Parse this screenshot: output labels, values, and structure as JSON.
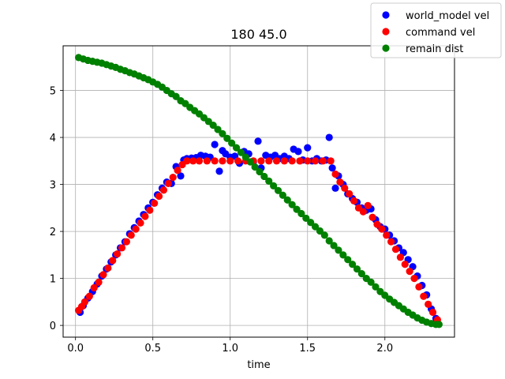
{
  "chart_data": {
    "type": "scatter",
    "title": "180  45.0",
    "xlabel": "time",
    "ylabel": "",
    "xlim": [
      -0.08,
      2.45
    ],
    "ylim": [
      -0.25,
      5.95
    ],
    "xticks": [
      0.0,
      0.5,
      1.0,
      1.5,
      2.0
    ],
    "xtick_labels": [
      "0.0",
      "0.5",
      "1.0",
      "1.5",
      "2.0"
    ],
    "yticks": [
      0,
      1,
      2,
      3,
      4,
      5
    ],
    "ytick_labels": [
      "0",
      "1",
      "2",
      "3",
      "4",
      "5"
    ],
    "grid": true,
    "legend_position": "top-right",
    "series": [
      {
        "name": "world_model vel",
        "color": "#0000ff",
        "x": [
          0.03,
          0.05,
          0.08,
          0.11,
          0.14,
          0.17,
          0.2,
          0.23,
          0.26,
          0.29,
          0.32,
          0.35,
          0.38,
          0.41,
          0.44,
          0.47,
          0.5,
          0.53,
          0.56,
          0.59,
          0.62,
          0.65,
          0.68,
          0.7,
          0.72,
          0.75,
          0.78,
          0.81,
          0.84,
          0.87,
          0.9,
          0.93,
          0.95,
          0.97,
          1.0,
          1.03,
          1.06,
          1.09,
          1.12,
          1.15,
          1.18,
          1.2,
          1.23,
          1.26,
          1.29,
          1.32,
          1.35,
          1.38,
          1.41,
          1.44,
          1.47,
          1.5,
          1.53,
          1.56,
          1.59,
          1.62,
          1.64,
          1.66,
          1.68,
          1.7,
          1.73,
          1.76,
          1.79,
          1.82,
          1.85,
          1.88,
          1.91,
          1.94,
          1.97,
          2.0,
          2.03,
          2.06,
          2.09,
          2.12,
          2.15,
          2.18,
          2.21,
          2.24,
          2.27,
          2.3,
          2.33
        ],
        "y": [
          0.28,
          0.42,
          0.58,
          0.72,
          0.88,
          1.05,
          1.2,
          1.35,
          1.5,
          1.65,
          1.78,
          1.95,
          2.08,
          2.22,
          2.36,
          2.5,
          2.62,
          2.78,
          2.92,
          3.05,
          3.02,
          3.38,
          3.18,
          3.52,
          3.55,
          3.56,
          3.57,
          3.62,
          3.6,
          3.58,
          3.85,
          3.28,
          3.72,
          3.65,
          3.58,
          3.6,
          3.45,
          3.7,
          3.65,
          3.48,
          3.92,
          3.35,
          3.62,
          3.58,
          3.62,
          3.55,
          3.6,
          3.55,
          3.75,
          3.7,
          3.52,
          3.78,
          3.5,
          3.55,
          3.5,
          3.52,
          4.0,
          3.35,
          2.92,
          3.18,
          3.0,
          2.8,
          2.7,
          2.62,
          2.5,
          2.45,
          2.48,
          2.25,
          2.1,
          2.05,
          1.92,
          1.8,
          1.65,
          1.55,
          1.4,
          1.25,
          1.05,
          0.85,
          0.65,
          0.35,
          0.15
        ]
      },
      {
        "name": "command vel",
        "color": "#ff0000",
        "x": [
          0.02,
          0.04,
          0.06,
          0.09,
          0.12,
          0.15,
          0.18,
          0.21,
          0.24,
          0.27,
          0.3,
          0.33,
          0.36,
          0.39,
          0.42,
          0.45,
          0.48,
          0.51,
          0.54,
          0.57,
          0.6,
          0.63,
          0.66,
          0.69,
          0.72,
          0.76,
          0.8,
          0.85,
          0.9,
          0.95,
          1.0,
          1.05,
          1.1,
          1.15,
          1.2,
          1.25,
          1.3,
          1.35,
          1.4,
          1.45,
          1.5,
          1.55,
          1.6,
          1.65,
          1.68,
          1.71,
          1.74,
          1.77,
          1.8,
          1.83,
          1.86,
          1.89,
          1.92,
          1.95,
          1.98,
          2.01,
          2.04,
          2.07,
          2.1,
          2.13,
          2.16,
          2.19,
          2.22,
          2.25,
          2.28,
          2.31,
          2.34
        ],
        "y": [
          0.32,
          0.4,
          0.5,
          0.62,
          0.8,
          0.92,
          1.08,
          1.22,
          1.38,
          1.52,
          1.65,
          1.78,
          1.92,
          2.05,
          2.18,
          2.32,
          2.45,
          2.6,
          2.75,
          2.88,
          3.02,
          3.15,
          3.3,
          3.42,
          3.5,
          3.5,
          3.5,
          3.5,
          3.5,
          3.5,
          3.5,
          3.5,
          3.5,
          3.5,
          3.5,
          3.5,
          3.5,
          3.5,
          3.5,
          3.5,
          3.5,
          3.5,
          3.5,
          3.5,
          3.22,
          3.05,
          2.92,
          2.8,
          2.65,
          2.5,
          2.42,
          2.55,
          2.3,
          2.15,
          2.05,
          1.92,
          1.78,
          1.62,
          1.45,
          1.3,
          1.15,
          1.0,
          0.82,
          0.62,
          0.45,
          0.28,
          0.12
        ]
      },
      {
        "name": "remain dist",
        "color": "#008000",
        "x": [
          0.02,
          0.05,
          0.08,
          0.11,
          0.14,
          0.17,
          0.2,
          0.23,
          0.26,
          0.29,
          0.32,
          0.35,
          0.38,
          0.41,
          0.44,
          0.47,
          0.5,
          0.53,
          0.56,
          0.59,
          0.62,
          0.65,
          0.68,
          0.71,
          0.74,
          0.77,
          0.8,
          0.83,
          0.86,
          0.89,
          0.92,
          0.95,
          0.98,
          1.01,
          1.04,
          1.07,
          1.1,
          1.13,
          1.16,
          1.19,
          1.22,
          1.25,
          1.28,
          1.31,
          1.34,
          1.37,
          1.4,
          1.43,
          1.46,
          1.49,
          1.52,
          1.55,
          1.58,
          1.61,
          1.64,
          1.67,
          1.7,
          1.73,
          1.76,
          1.79,
          1.82,
          1.85,
          1.88,
          1.91,
          1.94,
          1.97,
          2.0,
          2.03,
          2.06,
          2.09,
          2.12,
          2.15,
          2.18,
          2.21,
          2.24,
          2.27,
          2.3,
          2.33,
          2.35
        ],
        "y": [
          5.7,
          5.67,
          5.64,
          5.62,
          5.6,
          5.58,
          5.55,
          5.52,
          5.49,
          5.45,
          5.42,
          5.38,
          5.35,
          5.31,
          5.27,
          5.23,
          5.18,
          5.13,
          5.07,
          5.0,
          4.93,
          4.87,
          4.78,
          4.72,
          4.64,
          4.57,
          4.5,
          4.42,
          4.34,
          4.26,
          4.17,
          4.08,
          3.98,
          3.88,
          3.78,
          3.68,
          3.58,
          3.48,
          3.37,
          3.27,
          3.17,
          3.07,
          2.97,
          2.87,
          2.77,
          2.67,
          2.57,
          2.47,
          2.38,
          2.28,
          2.19,
          2.1,
          2.01,
          1.92,
          1.8,
          1.7,
          1.6,
          1.5,
          1.4,
          1.3,
          1.2,
          1.1,
          1.0,
          0.92,
          0.82,
          0.72,
          0.64,
          0.56,
          0.49,
          0.42,
          0.35,
          0.28,
          0.22,
          0.16,
          0.11,
          0.07,
          0.04,
          0.02,
          0.02
        ]
      }
    ]
  }
}
